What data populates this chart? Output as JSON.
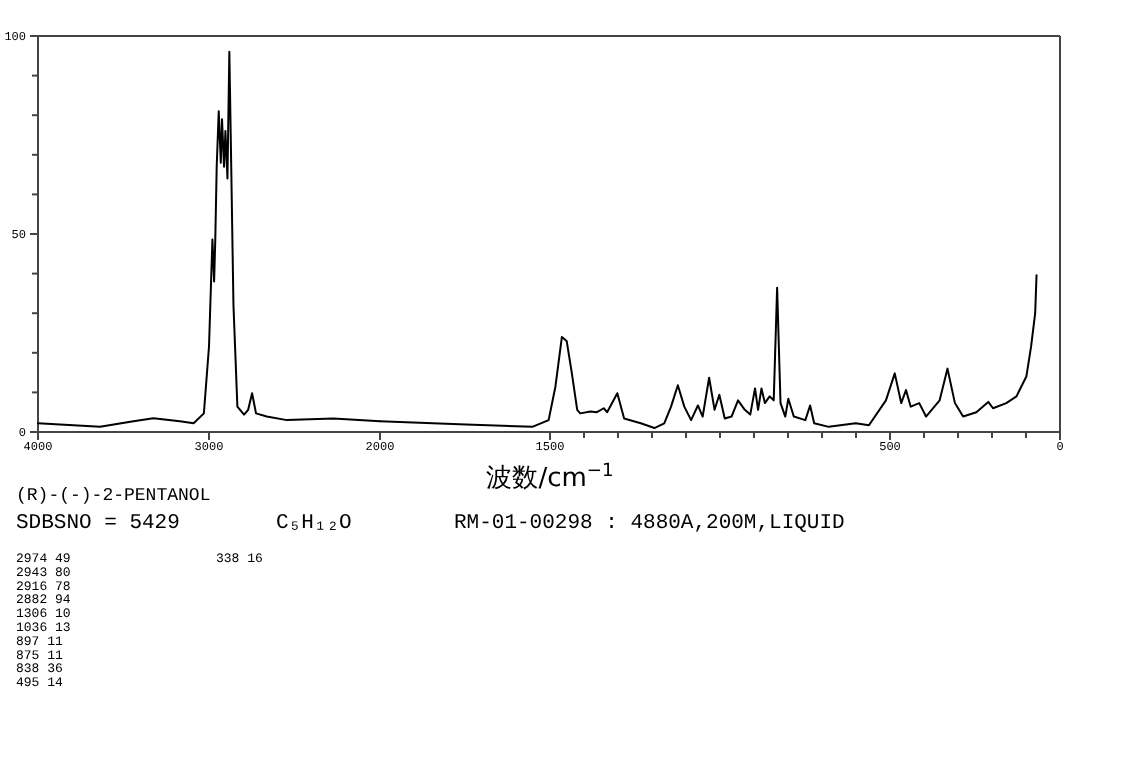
{
  "chart_data": [
    {
      "type": "line",
      "title": "(R)-(-)-2-PENTANOL",
      "x": [
        4000,
        3637,
        3442,
        3325,
        3170,
        3090,
        3030,
        3000,
        2980,
        2970,
        2963,
        2955,
        2943,
        2931,
        2924,
        2912,
        2904,
        2892,
        2881,
        2873,
        2857,
        2834,
        2795,
        2771,
        2748,
        2725,
        2662,
        2545,
        2272,
        2000
      ],
      "series": [
        {
          "color": "#000000",
          "values": [
            2.2,
            1.3,
            2.7,
            3.5,
            2.7,
            2.2,
            4.7,
            21.6,
            48.6,
            38,
            49,
            67,
            81,
            68,
            79,
            67,
            76,
            64,
            96,
            75,
            32,
            6.4,
            4.4,
            5.6,
            9.8,
            4.7,
            3.9,
            3,
            3.4,
            2.7
          ]
        }
      ],
      "xlim": [
        4000,
        2000
      ],
      "xticks": [
        4000,
        3000,
        2000
      ],
      "ylim": [
        0,
        100
      ],
      "yticks": [
        0,
        {
          "value": 10,
          "label": null
        },
        {
          "value": 20,
          "label": null
        },
        {
          "value": 30,
          "label": null
        },
        {
          "value": 40,
          "label": null
        },
        50,
        {
          "value": 60,
          "label": null
        },
        {
          "value": 70,
          "label": null
        },
        {
          "value": 80,
          "label": null
        },
        {
          "value": 90,
          "label": null
        },
        100
      ],
      "marker": "none",
      "line_style": "solid"
    },
    {
      "type": "line",
      "xlabel": "波数/cm$^{−1}$",
      "annotations": [
        "SDBSNO = 5429",
        "C₅H₁₂O",
        "RM-01-00298 : 4880A,200M,LIQUID",
        "2974   49",
        "2943   80",
        "2916   78",
        "2882   94",
        "1306   10",
        "1036   13",
        " 897   11",
        " 875   11",
        " 838   36",
        " 495   14",
        " 338   16"
      ],
      "x": [
        2000,
        1747,
        1552,
        1504,
        1484,
        1465,
        1451,
        1436,
        1420,
        1411,
        1381,
        1362,
        1342,
        1332,
        1302,
        1282,
        1233,
        1193,
        1164,
        1144,
        1124,
        1105,
        1085,
        1065,
        1051,
        1032,
        1016,
        1002,
        986,
        966,
        947,
        927,
        911,
        897,
        888,
        878,
        868,
        854,
        842,
        832,
        822,
        808,
        799,
        783,
        749,
        735,
        723,
        680,
        601,
        562,
        512,
        486,
        467,
        453,
        439,
        414,
        394,
        354,
        331,
        309,
        285,
        246,
        211,
        197,
        158,
        128,
        99,
        85,
        73,
        69
      ],
      "series": [
        {
          "color": "#000000",
          "values": [
            2.7,
            1.9,
            1.3,
            3,
            11.5,
            24,
            23,
            15,
            5.6,
            4.7,
            5.2,
            5,
            6,
            5,
            9.8,
            3.4,
            2.2,
            1,
            2.2,
            6.4,
            11.8,
            6.4,
            3,
            6.7,
            3.9,
            13.7,
            5.6,
            9.4,
            3.4,
            3.9,
            8,
            5.6,
            4.4,
            11,
            5.6,
            11,
            7.3,
            9,
            8,
            36.4,
            7.3,
            3.9,
            8.4,
            3.9,
            3,
            6.7,
            2.2,
            1.3,
            2.2,
            1.7,
            8,
            14.8,
            7.3,
            10.6,
            6.4,
            7.3,
            3.9,
            8,
            16,
            7.3,
            3.9,
            5,
            7.6,
            6,
            7.3,
            9,
            14,
            21.6,
            30,
            39.6
          ]
        }
      ],
      "xlim": [
        2000,
        0
      ],
      "xticks": [
        1500,
        {
          "value": 1400,
          "label": null
        },
        {
          "value": 1300,
          "label": null
        },
        {
          "value": 1200,
          "label": null
        },
        {
          "value": 1100,
          "label": null
        },
        {
          "value": 1000,
          "label": null
        },
        {
          "value": 900,
          "label": null
        },
        {
          "value": 800,
          "label": null
        },
        {
          "value": 700,
          "label": null
        },
        {
          "value": 600,
          "label": null
        },
        500,
        {
          "value": 400,
          "label": null
        },
        {
          "value": 300,
          "label": null
        },
        {
          "value": 200,
          "label": null
        },
        {
          "value": 100,
          "label": null
        },
        0
      ],
      "ylim": [
        0,
        100
      ],
      "tick_labels": "x",
      "marker": "none",
      "line_style": "solid"
    }
  ]
}
